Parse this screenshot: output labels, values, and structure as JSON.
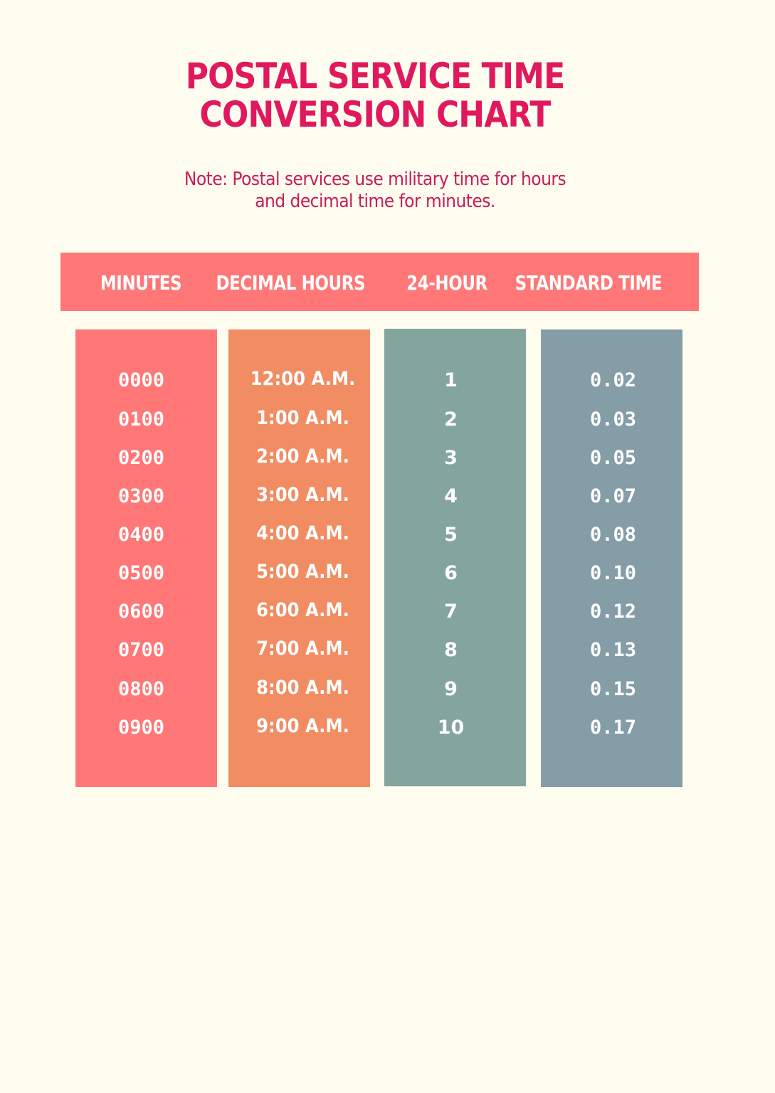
{
  "title": {
    "line1": "POSTAL SERVICE TIME",
    "line2": "CONVERSION CHART"
  },
  "note": {
    "line1": "Note: Postal services use military time for hours",
    "line2": "and decimal time for minutes."
  },
  "colors": {
    "background": "#FEFDEF",
    "title": "#E0185E",
    "header_bar": "#FF7777",
    "column_1": "#FF7777",
    "column_2": "#F28C62",
    "column_3": "#84A59D",
    "column_4": "#849DA7",
    "cell_text": "#FFFFFF"
  },
  "table": {
    "headers": [
      "MINUTES",
      "DECIMAL HOURS",
      "24-HOUR",
      "STANDARD TIME"
    ],
    "columns": [
      {
        "values": [
          "0000",
          "0100",
          "0200",
          "0300",
          "0400",
          "0500",
          "0600",
          "0700",
          "0800",
          "0900"
        ]
      },
      {
        "values": [
          "12:00 A.M.",
          "1:00 A.M.",
          "2:00 A.M.",
          "3:00 A.M.",
          "4:00 A.M.",
          "5:00 A.M.",
          "6:00 A.M.",
          "7:00 A.M.",
          "8:00 A.M.",
          "9:00 A.M."
        ]
      },
      {
        "values": [
          "1",
          "2",
          "3",
          "4",
          "5",
          "6",
          "7",
          "8",
          "9",
          "10"
        ]
      },
      {
        "values": [
          "0.02",
          "0.03",
          "0.05",
          "0.07",
          "0.08",
          "0.10",
          "0.12",
          "0.13",
          "0.15",
          "0.17"
        ]
      }
    ]
  }
}
